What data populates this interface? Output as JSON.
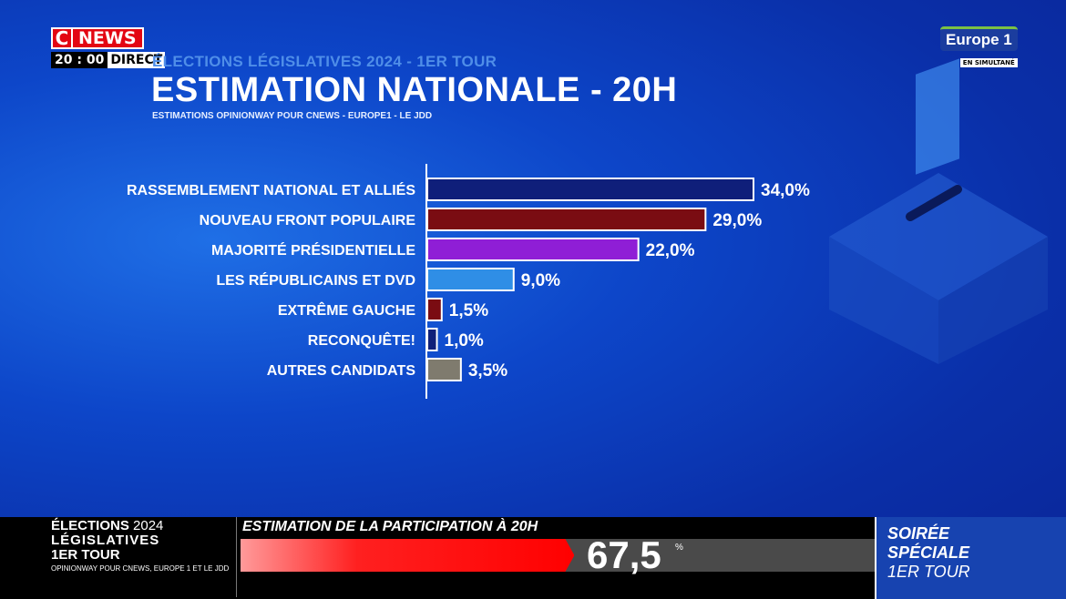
{
  "channel": {
    "logo_c": "C",
    "logo_news": "NEWS",
    "time": "20 : 00",
    "live": "DIRECT"
  },
  "header": {
    "subtitle": "ÉLECTIONS LÉGISLATIVES 2024 - 1ER TOUR",
    "title": "ESTIMATION NATIONALE - 20H",
    "source": "ESTIMATIONS OPINIONWAY POUR CNEWS - EUROPE1 - LE JDD"
  },
  "partner": {
    "name": "Europe 1",
    "tag": "EN SIMULTANÉ"
  },
  "chart_data": {
    "type": "bar",
    "orientation": "horizontal",
    "categories": [
      "RASSEMBLEMENT NATIONAL ET ALLIÉS",
      "NOUVEAU FRONT POPULAIRE",
      "MAJORITÉ PRÉSIDENTIELLE",
      "LES RÉPUBLICAINS ET DVD",
      "EXTRÊME GAUCHE",
      "RECONQUÊTE!",
      "AUTRES CANDIDATS"
    ],
    "values": [
      34.0,
      29.0,
      22.0,
      9.0,
      1.5,
      1.0,
      3.5
    ],
    "value_labels": [
      "34,0%",
      "29,0%",
      "22,0%",
      "9,0%",
      "1,5%",
      "1,0%",
      "3,5%"
    ],
    "colors": [
      "#0f1f7a",
      "#7a0c12",
      "#8f1ed6",
      "#2f8ee6",
      "#7a0c12",
      "#0f1f7a",
      "#7f7b6e"
    ],
    "title": "ESTIMATION NATIONALE - 20H",
    "xlabel": "",
    "ylabel": "",
    "xlim": [
      0,
      34
    ]
  },
  "participation": {
    "title": "ESTIMATION DE LA PARTICIPATION À 20H",
    "value": 67.5,
    "value_label": "67,5",
    "unit": "%"
  },
  "band_left": {
    "line1_a": "ÉLECTIONS",
    "line1_b": " 2024",
    "line2": "LÉGISLATIVES",
    "line3": "1ER TOUR",
    "source": "OPINIONWAY POUR CNEWS, EUROPE 1 ET LE JDD"
  },
  "band_right": {
    "line1": "SOIRÉE",
    "line2": "SPÉCIALE",
    "line3": "1ER TOUR"
  }
}
